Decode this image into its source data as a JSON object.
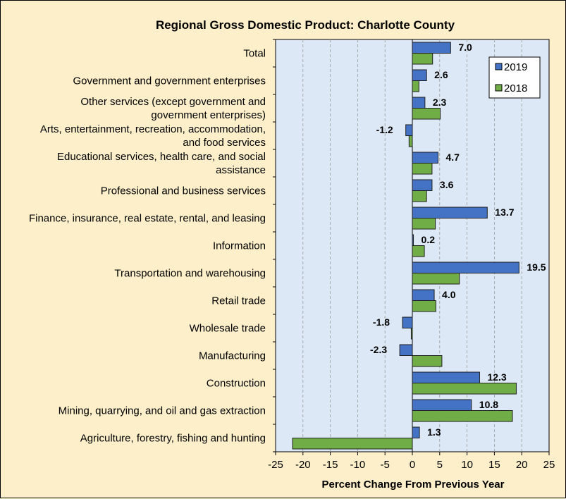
{
  "chart_data": {
    "type": "bar",
    "orientation": "horizontal",
    "title": "Regional Gross Domestic Product: Charlotte County",
    "xlabel": "Percent Change From Previous Year",
    "ylabel": "",
    "xlim": [
      -25,
      25
    ],
    "xticks": [
      -25,
      -20,
      -15,
      -10,
      -5,
      0,
      5,
      10,
      15,
      20,
      25
    ],
    "grid": "vertical dashed",
    "legend_position": "top-right",
    "categories": [
      "Total",
      "Government and government enterprises",
      "Other services (except government and government enterprises)",
      "Arts, entertainment, recreation, accommodation, and food services",
      "Educational services, health care, and social assistance",
      "Professional and business services",
      "Finance, insurance, real estate, rental, and leasing",
      "Information",
      "Transportation and warehousing",
      "Retail trade",
      "Wholesale trade",
      "Manufacturing",
      "Construction",
      "Mining, quarrying, and oil and gas extraction",
      "Agriculture, forestry, fishing and hunting"
    ],
    "category_lines": [
      [
        "Total"
      ],
      [
        "Government and government enterprises"
      ],
      [
        "Other services (except government and",
        "government enterprises)"
      ],
      [
        "Arts, entertainment, recreation, accommodation,",
        "and food services"
      ],
      [
        "Educational services, health care, and social",
        "assistance"
      ],
      [
        "Professional and business services"
      ],
      [
        "Finance, insurance, real estate, rental, and leasing"
      ],
      [
        "Information"
      ],
      [
        "Transportation and warehousing"
      ],
      [
        "Retail trade"
      ],
      [
        "Wholesale trade"
      ],
      [
        "Manufacturing"
      ],
      [
        "Construction"
      ],
      [
        "Mining, quarrying, and oil and gas extraction"
      ],
      [
        "Agriculture, forestry, fishing and hunting"
      ]
    ],
    "series": [
      {
        "name": "2019",
        "color": "#4472c4",
        "values": [
          7.0,
          2.6,
          2.3,
          -1.2,
          4.7,
          3.6,
          13.7,
          0.2,
          19.5,
          4.0,
          -1.8,
          -2.3,
          12.3,
          10.8,
          1.3
        ],
        "labels": [
          "7.0",
          "2.6",
          "2.3",
          "-1.2",
          "4.7",
          "3.6",
          "13.7",
          "0.2",
          "19.5",
          "4.0",
          "-1.8",
          "-2.3",
          "12.3",
          "10.8",
          "1.3"
        ]
      },
      {
        "name": "2018",
        "color": "#70ad47",
        "values": [
          3.7,
          1.2,
          5.1,
          -0.6,
          3.6,
          2.6,
          4.2,
          2.2,
          8.6,
          4.3,
          -0.2,
          5.4,
          19.0,
          18.3,
          -21.9
        ]
      }
    ]
  }
}
